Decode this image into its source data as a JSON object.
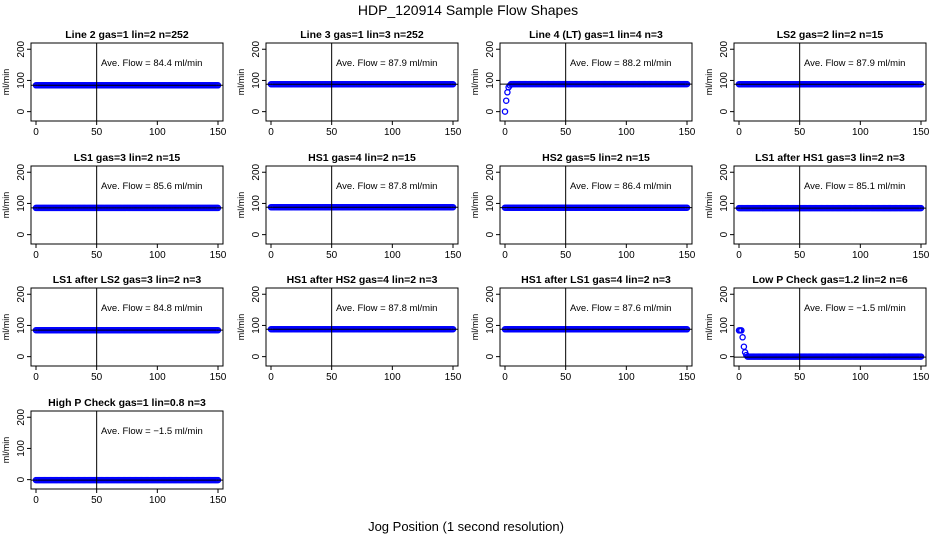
{
  "figure": {
    "title": "HDP_120914  Sample Flow Shapes",
    "xlabel": "Jog Position (1 second resolution)",
    "ylabel": "ml/min",
    "point_color": "#0000ff",
    "marker": "open-circle"
  },
  "chart_data": [
    {
      "type": "scatter",
      "title": "Line 2 gas=1 lin=2 n=252",
      "annotation": "Ave. Flow = 84.4 ml/min",
      "xlim": [
        0,
        150
      ],
      "ylim": [
        -30,
        220
      ],
      "xticks": [
        0,
        50,
        100,
        150
      ],
      "yticks": [
        0,
        100,
        200
      ],
      "mean_y": 84.4,
      "shape": "flat",
      "vline_x": 50,
      "hline_y": 84.4
    },
    {
      "type": "scatter",
      "title": "Line 3 gas=1 lin=3 n=252",
      "annotation": "Ave. Flow = 87.9 ml/min",
      "xlim": [
        0,
        150
      ],
      "ylim": [
        -30,
        220
      ],
      "xticks": [
        0,
        50,
        100,
        150
      ],
      "yticks": [
        0,
        100,
        200
      ],
      "mean_y": 87.9,
      "shape": "flat",
      "vline_x": 50,
      "hline_y": 87.9
    },
    {
      "type": "scatter",
      "title": "Line 4 (LT) gas=1 lin=4 n=3",
      "annotation": "Ave. Flow = 88.2 ml/min",
      "xlim": [
        0,
        150
      ],
      "ylim": [
        -30,
        220
      ],
      "xticks": [
        0,
        50,
        100,
        150
      ],
      "yticks": [
        0,
        100,
        200
      ],
      "mean_y": 88.2,
      "shape": "rise",
      "vline_x": 50,
      "hline_y": 88.2
    },
    {
      "type": "scatter",
      "title": "LS2 gas=2 lin=2 n=15",
      "annotation": "Ave. Flow = 87.9 ml/min",
      "xlim": [
        0,
        150
      ],
      "ylim": [
        -30,
        220
      ],
      "xticks": [
        0,
        50,
        100,
        150
      ],
      "yticks": [
        0,
        100,
        200
      ],
      "mean_y": 87.9,
      "shape": "flat",
      "vline_x": 50,
      "hline_y": 87.9
    },
    {
      "type": "scatter",
      "title": "LS1 gas=3 lin=2 n=15",
      "annotation": "Ave. Flow = 85.6 ml/min",
      "xlim": [
        0,
        150
      ],
      "ylim": [
        -30,
        220
      ],
      "xticks": [
        0,
        50,
        100,
        150
      ],
      "yticks": [
        0,
        100,
        200
      ],
      "mean_y": 85.6,
      "shape": "flat",
      "vline_x": 50,
      "hline_y": 85.6
    },
    {
      "type": "scatter",
      "title": "HS1 gas=4 lin=2 n=15",
      "annotation": "Ave. Flow = 87.8 ml/min",
      "xlim": [
        0,
        150
      ],
      "ylim": [
        -30,
        220
      ],
      "xticks": [
        0,
        50,
        100,
        150
      ],
      "yticks": [
        0,
        100,
        200
      ],
      "mean_y": 87.8,
      "shape": "flat",
      "vline_x": 50,
      "hline_y": 87.8
    },
    {
      "type": "scatter",
      "title": "HS2 gas=5 lin=2 n=15",
      "annotation": "Ave. Flow = 86.4 ml/min",
      "xlim": [
        0,
        150
      ],
      "ylim": [
        -30,
        220
      ],
      "xticks": [
        0,
        50,
        100,
        150
      ],
      "yticks": [
        0,
        100,
        200
      ],
      "mean_y": 86.4,
      "shape": "flat",
      "vline_x": 50,
      "hline_y": 86.4
    },
    {
      "type": "scatter",
      "title": "LS1 after HS1 gas=3 lin=2 n=3",
      "annotation": "Ave. Flow = 85.1 ml/min",
      "xlim": [
        0,
        150
      ],
      "ylim": [
        -30,
        220
      ],
      "xticks": [
        0,
        50,
        100,
        150
      ],
      "yticks": [
        0,
        100,
        200
      ],
      "mean_y": 85.1,
      "shape": "flat",
      "vline_x": 50,
      "hline_y": 85.1
    },
    {
      "type": "scatter",
      "title": "LS1 after LS2 gas=3 lin=2 n=3",
      "annotation": "Ave. Flow = 84.8 ml/min",
      "xlim": [
        0,
        150
      ],
      "ylim": [
        -30,
        220
      ],
      "xticks": [
        0,
        50,
        100,
        150
      ],
      "yticks": [
        0,
        100,
        200
      ],
      "mean_y": 84.8,
      "shape": "flat",
      "vline_x": 50,
      "hline_y": 84.8
    },
    {
      "type": "scatter",
      "title": "HS1 after HS2 gas=4 lin=2 n=3",
      "annotation": "Ave. Flow = 87.8 ml/min",
      "xlim": [
        0,
        150
      ],
      "ylim": [
        -30,
        220
      ],
      "xticks": [
        0,
        50,
        100,
        150
      ],
      "yticks": [
        0,
        100,
        200
      ],
      "mean_y": 87.8,
      "shape": "flat",
      "vline_x": 50,
      "hline_y": 87.8
    },
    {
      "type": "scatter",
      "title": "HS1 after LS1 gas=4 lin=2 n=3",
      "annotation": "Ave. Flow = 87.6 ml/min",
      "xlim": [
        0,
        150
      ],
      "ylim": [
        -30,
        220
      ],
      "xticks": [
        0,
        50,
        100,
        150
      ],
      "yticks": [
        0,
        100,
        200
      ],
      "mean_y": 87.6,
      "shape": "flat",
      "vline_x": 50,
      "hline_y": 87.6
    },
    {
      "type": "scatter",
      "title": "Low P Check gas=1.2 lin=2 n=6",
      "annotation": "Ave. Flow = −1.5 ml/min",
      "xlim": [
        0,
        150
      ],
      "ylim": [
        -30,
        220
      ],
      "xticks": [
        0,
        50,
        100,
        150
      ],
      "yticks": [
        0,
        100,
        200
      ],
      "mean_y": -1.5,
      "shape": "decay",
      "vline_x": 50,
      "hline_y": -1.5
    },
    {
      "type": "scatter",
      "title": "High P Check gas=1 lin=0.8 n=3",
      "annotation": "Ave. Flow = −1.5 ml/min",
      "xlim": [
        0,
        150
      ],
      "ylim": [
        -30,
        220
      ],
      "xticks": [
        0,
        50,
        100,
        150
      ],
      "yticks": [
        0,
        100,
        200
      ],
      "mean_y": -1.5,
      "shape": "flat",
      "vline_x": 50,
      "hline_y": -1.5
    }
  ]
}
